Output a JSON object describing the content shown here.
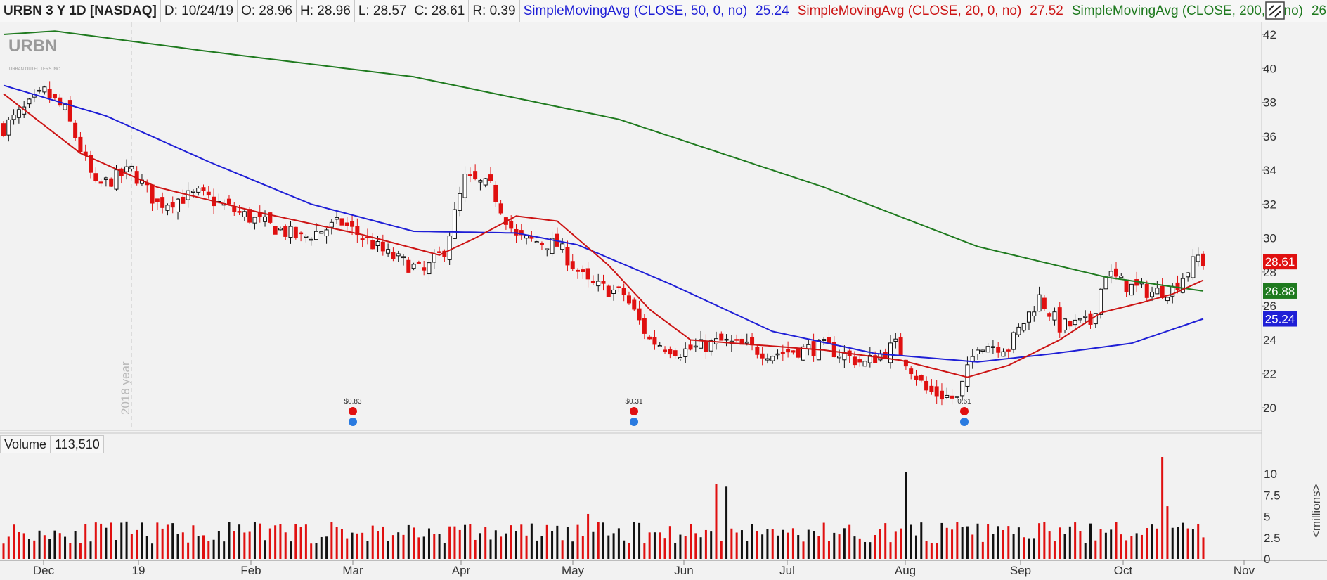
{
  "header": {
    "symbol": "URBN 3 Y 1D [NASDAQ]",
    "date": "D: 10/24/19",
    "open": "O: 28.96",
    "high": "H: 28.96",
    "low": "L: 28.57",
    "close": "C: 28.61",
    "range": "R: 0.39",
    "sma50_label": "SimpleMovingAvg (CLOSE, 50, 0, no)",
    "sma50_value": "25.24",
    "sma20_label": "SimpleMovingAvg (CLOSE, 20, 0, no)",
    "sma20_value": "27.52",
    "sma200_label": "SimpleMovingAvg (CLOSE, 200, 0, no)",
    "sma200_value": "26.88"
  },
  "logo": {
    "text": "URBN",
    "subtext": "URBAN OUTFITTERS INC."
  },
  "colors": {
    "up": "#ffffff",
    "down": "#e01010",
    "sma50": "#1f1fd6",
    "sma20": "#cc1414",
    "sma200": "#1f7a1f",
    "price_badge": "#e01010",
    "vol_up": "#111111",
    "vol_down": "#e01010"
  },
  "volume": {
    "label": "Volume",
    "value": "113,510",
    "unit": "<millions>"
  },
  "year_marker": "2018 year",
  "events": [
    {
      "month_pos": "Mar",
      "label": "$0.83"
    },
    {
      "month_pos": "May",
      "label": "$0.31"
    },
    {
      "month_pos": "Aug",
      "label": "0.61"
    }
  ],
  "chart_data": {
    "type": "candlestick",
    "x_ticks": [
      "Dec",
      "19",
      "Feb",
      "Mar",
      "Apr",
      "May",
      "Jun",
      "Jul",
      "Aug",
      "Sep",
      "Oct",
      "Nov"
    ],
    "y_ticks": [
      20,
      22,
      24,
      26,
      28,
      30,
      32,
      34,
      36,
      38,
      40,
      42
    ],
    "ylim": [
      19,
      42.5
    ],
    "price_labels": [
      {
        "value": 28.61,
        "text": "28.61",
        "color": "#e01010"
      },
      {
        "value": 26.88,
        "text": "26.88",
        "color": "#1f7a1f"
      },
      {
        "value": 25.24,
        "text": "25.24",
        "color": "#1f1fd6"
      }
    ],
    "close_anchors": [
      [
        0,
        36.5
      ],
      [
        8,
        38.6
      ],
      [
        12,
        37.5
      ],
      [
        18,
        33.0
      ],
      [
        25,
        34.0
      ],
      [
        30,
        32.0
      ],
      [
        38,
        32.6
      ],
      [
        48,
        31.2
      ],
      [
        58,
        30.0
      ],
      [
        66,
        30.9
      ],
      [
        75,
        29.0
      ],
      [
        82,
        28.0
      ],
      [
        86,
        29.3
      ],
      [
        90,
        33.5
      ],
      [
        95,
        33.0
      ],
      [
        100,
        30.0
      ],
      [
        108,
        29.6
      ],
      [
        114,
        27.3
      ],
      [
        121,
        26.7
      ],
      [
        126,
        24.0
      ],
      [
        132,
        23.3
      ],
      [
        140,
        23.9
      ],
      [
        150,
        23.2
      ],
      [
        160,
        23.6
      ],
      [
        168,
        22.6
      ],
      [
        174,
        23.7
      ],
      [
        180,
        21.0
      ],
      [
        186,
        20.5
      ],
      [
        190,
        23.8
      ],
      [
        196,
        23.6
      ],
      [
        202,
        26.5
      ],
      [
        206,
        24.8
      ],
      [
        212,
        25.0
      ],
      [
        215,
        28.0
      ],
      [
        219,
        27.2
      ],
      [
        224,
        26.8
      ],
      [
        228,
        27.0
      ],
      [
        233,
        28.9
      ],
      [
        234,
        28.61
      ]
    ],
    "sma200_anchors": [
      [
        0,
        42.0
      ],
      [
        10,
        42.2
      ],
      [
        40,
        41.0
      ],
      [
        80,
        39.5
      ],
      [
        120,
        37.0
      ],
      [
        160,
        33.0
      ],
      [
        190,
        29.5
      ],
      [
        215,
        27.7
      ],
      [
        234,
        26.88
      ]
    ],
    "sma50_anchors": [
      [
        0,
        39.0
      ],
      [
        20,
        37.2
      ],
      [
        40,
        34.5
      ],
      [
        60,
        32.0
      ],
      [
        80,
        30.4
      ],
      [
        100,
        30.3
      ],
      [
        112,
        29.6
      ],
      [
        130,
        27.3
      ],
      [
        150,
        24.5
      ],
      [
        170,
        23.2
      ],
      [
        190,
        22.7
      ],
      [
        205,
        23.2
      ],
      [
        220,
        23.8
      ],
      [
        234,
        25.24
      ]
    ],
    "sma20_anchors": [
      [
        0,
        38.5
      ],
      [
        15,
        35.0
      ],
      [
        30,
        33.0
      ],
      [
        50,
        31.5
      ],
      [
        70,
        30.2
      ],
      [
        85,
        29.0
      ],
      [
        92,
        30.0
      ],
      [
        100,
        31.3
      ],
      [
        108,
        31.0
      ],
      [
        118,
        28.4
      ],
      [
        126,
        25.8
      ],
      [
        134,
        24.0
      ],
      [
        160,
        23.4
      ],
      [
        175,
        22.8
      ],
      [
        188,
        21.8
      ],
      [
        196,
        22.5
      ],
      [
        206,
        24.0
      ],
      [
        214,
        25.6
      ],
      [
        222,
        26.2
      ],
      [
        228,
        26.7
      ],
      [
        234,
        27.52
      ]
    ],
    "volume_ylim": [
      0,
      12
    ],
    "volume_ticks": [
      0,
      2.5,
      5,
      7.5,
      10
    ]
  }
}
